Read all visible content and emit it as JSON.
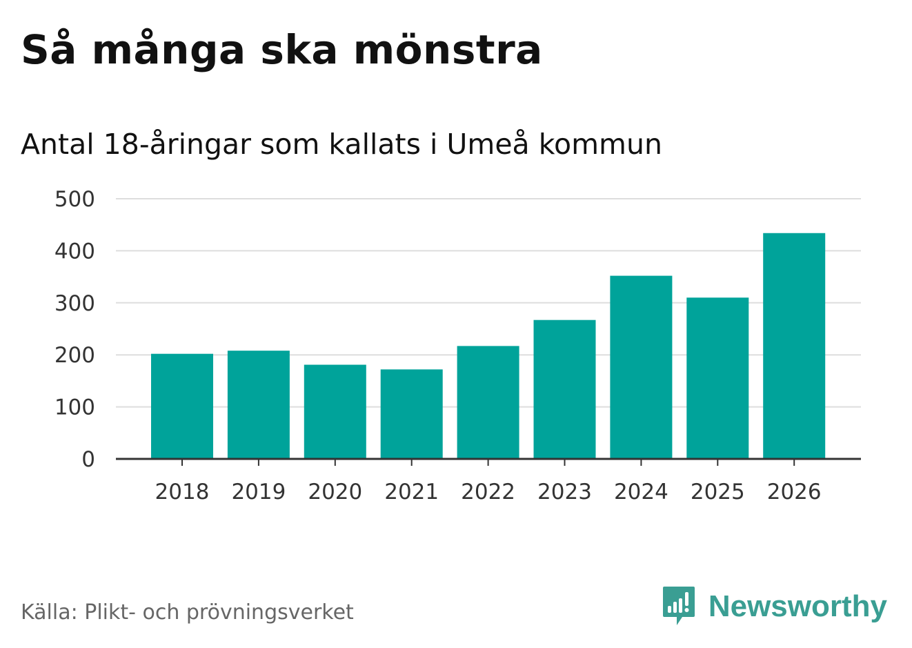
{
  "header": {
    "title": "Så många ska mönstra",
    "subtitle": "Antal 18-åringar som kallats i Umeå kommun"
  },
  "footer": {
    "source": "Källa: Plikt- och prövningsverket",
    "brand_name": "Newsworthy",
    "brand_icon": "newsworthy-logo-icon"
  },
  "colors": {
    "bar": "#00a39a",
    "grid": "#dddddd",
    "axis": "#333333",
    "brand": "#3a9e93"
  },
  "chart_data": {
    "type": "bar",
    "title": "Så många ska mönstra",
    "subtitle": "Antal 18-åringar som kallats i Umeå kommun",
    "xlabel": "",
    "ylabel": "",
    "categories": [
      "2018",
      "2019",
      "2020",
      "2021",
      "2022",
      "2023",
      "2024",
      "2025",
      "2026"
    ],
    "values": [
      202,
      208,
      181,
      172,
      217,
      267,
      352,
      310,
      434
    ],
    "ylim": [
      0,
      500
    ],
    "yticks": [
      0,
      100,
      200,
      300,
      400,
      500
    ],
    "grid": true,
    "legend": "none"
  }
}
